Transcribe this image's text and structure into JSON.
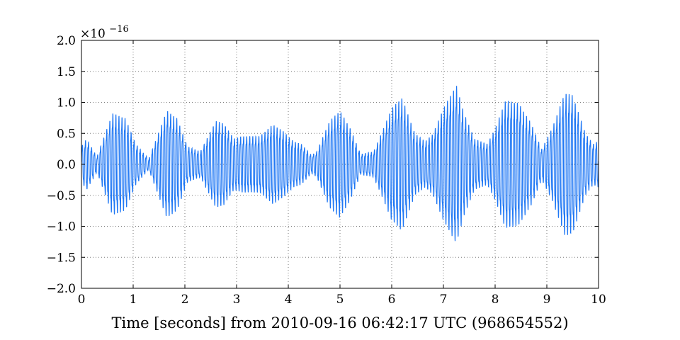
{
  "chart_data": {
    "type": "line",
    "xlabel": "Time [seconds] from 2010-09-16 06:42:17 UTC (968654552)",
    "ylabel": "",
    "x_range": [
      0,
      10
    ],
    "y_range": [
      -2.0,
      2.0
    ],
    "y_multiplier": "×10",
    "y_multiplier_exponent": "−16",
    "x_tick_labels": [
      "0",
      "1",
      "2",
      "3",
      "4",
      "5",
      "6",
      "7",
      "8",
      "9",
      "10"
    ],
    "x_ticks": [
      0,
      1,
      2,
      3,
      4,
      5,
      6,
      7,
      8,
      9,
      10
    ],
    "y_tick_labels": [
      "2.0",
      "1.5",
      "1.0",
      "0.5",
      "0.0",
      "−0.5",
      "−1.0",
      "−1.5",
      "−2.0"
    ],
    "y_ticks": [
      2.0,
      1.5,
      1.0,
      0.5,
      0.0,
      -0.5,
      -1.0,
      -1.5,
      -2.0
    ],
    "grid": true,
    "series": [
      {
        "color": "#1f77f4",
        "oscillation_hz": 17,
        "envelope": {
          "t": [
            0,
            0.1,
            0.3,
            0.6,
            0.85,
            1.05,
            1.3,
            1.65,
            1.85,
            2.05,
            2.3,
            2.6,
            2.75,
            2.95,
            3.1,
            3.25,
            3.45,
            3.7,
            3.9,
            4.1,
            4.25,
            4.45,
            4.55,
            4.8,
            5.0,
            5.2,
            5.4,
            5.65,
            5.8,
            6.0,
            6.2,
            6.45,
            6.65,
            6.8,
            7.0,
            7.25,
            7.4,
            7.6,
            7.85,
            8.0,
            8.2,
            8.45,
            8.7,
            8.9,
            9.1,
            9.35,
            9.5,
            9.75,
            9.9,
            10.0
          ],
          "a": [
            0.35,
            0.5,
            0.15,
            1.0,
            0.9,
            0.4,
            0.1,
            1.05,
            0.9,
            0.35,
            0.25,
            0.85,
            0.8,
            0.5,
            0.55,
            0.55,
            0.55,
            0.78,
            0.65,
            0.45,
            0.4,
            0.18,
            0.25,
            0.85,
            1.05,
            0.7,
            0.2,
            0.25,
            0.6,
            1.1,
            1.3,
            0.6,
            0.45,
            0.6,
            1.1,
            1.55,
            1.0,
            0.5,
            0.4,
            0.7,
            1.25,
            1.2,
            0.8,
            0.3,
            0.7,
            1.4,
            1.35,
            0.6,
            0.4,
            0.45
          ]
        }
      }
    ]
  }
}
